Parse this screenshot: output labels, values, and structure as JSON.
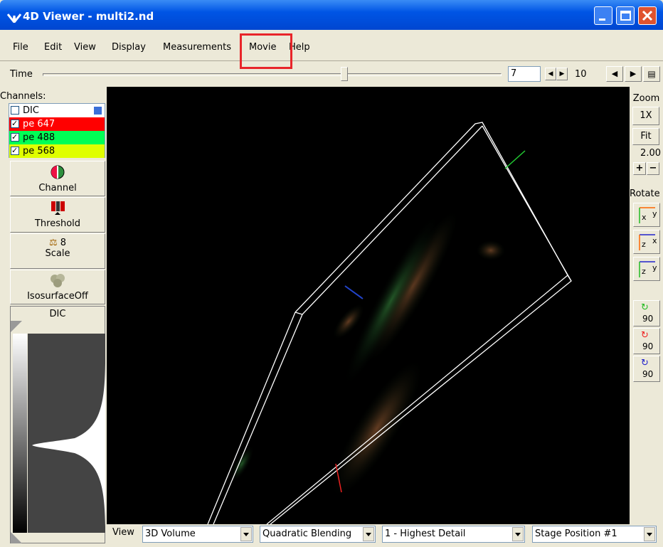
{
  "window": {
    "title": "4D Viewer - multi2.nd"
  },
  "menu": {
    "items": [
      "File",
      "Edit",
      "View",
      "Display",
      "Measurements",
      "Movie",
      "Help"
    ]
  },
  "time": {
    "label": "Time",
    "value": "7",
    "max": "10"
  },
  "channels": {
    "label": "Channels:",
    "items": [
      "DIC",
      "pe 647",
      "pe 488",
      "pe 568"
    ]
  },
  "tools": {
    "channel": "Channel",
    "threshold": "Threshold",
    "scale_value": "8",
    "scale": "Scale",
    "isosurface": "IsosurfaceOff"
  },
  "histogram": {
    "label": "DIC"
  },
  "zoom": {
    "label": "Zoom",
    "one": "1X",
    "fit": "Fit",
    "value": "2.00",
    "plus": "+",
    "minus": "−"
  },
  "rotate": {
    "label": "Rotate",
    "axis_buttons": [
      [
        "x",
        "y"
      ],
      [
        "z",
        "x"
      ],
      [
        "z",
        "y"
      ]
    ],
    "turn_labels": [
      "90",
      "90",
      "90"
    ]
  },
  "view_bar": {
    "label": "View",
    "selects": [
      "3D Volume",
      "Quadratic Blending",
      "1 - Highest Detail",
      "Stage Position #1"
    ]
  }
}
